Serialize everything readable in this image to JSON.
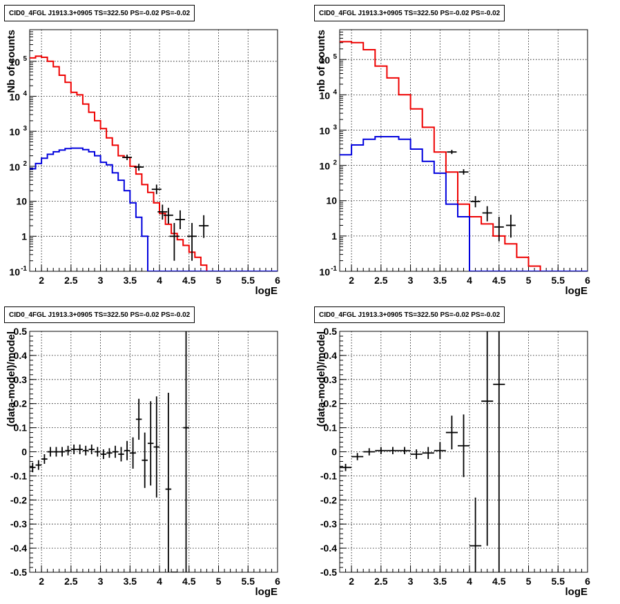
{
  "chart_data": [
    {
      "type": "histogram",
      "title": "CID0_4FGL J1913.3+0905 TS=322.50 PS=-0.02 PS=-0.02",
      "xlabel": "logE",
      "ylabel": "Nb of counts",
      "xlim": [
        1.8,
        6
      ],
      "ylim": [
        0.1,
        800000
      ],
      "log_y": true,
      "grid": true,
      "x_ticks": [
        "2",
        "2.5",
        "3",
        "3.5",
        "4",
        "4.5",
        "5",
        "5.5",
        "6"
      ],
      "y_ticks": [
        "10^-1",
        "1",
        "10",
        "10^2",
        "10^3",
        "10^4",
        "10^5"
      ],
      "bin_edges": [
        1.8,
        1.9,
        2.0,
        2.1,
        2.2,
        2.3,
        2.4,
        2.5,
        2.6,
        2.7,
        2.8,
        2.9,
        3.0,
        3.1,
        3.2,
        3.3,
        3.4,
        3.5,
        3.6,
        3.7,
        3.8,
        3.9,
        4.0,
        4.1,
        4.2,
        4.3,
        4.4,
        4.5,
        4.6,
        4.7,
        4.8,
        4.9,
        5.0,
        5.1,
        5.2,
        5.3,
        5.4,
        5.5,
        5.6,
        5.7,
        5.8,
        5.9,
        6.0
      ],
      "series": [
        {
          "color": "#ee0000",
          "values": [
            125000,
            140000,
            130000,
            100000,
            70000,
            40000,
            25000,
            13000,
            11000,
            6000,
            3500,
            2000,
            1200,
            650,
            400,
            200,
            180,
            100,
            60,
            30,
            18,
            9,
            4.5,
            2.2,
            1.2,
            0.8,
            0.55,
            0.35,
            0.25,
            0.15,
            0.1,
            0.1,
            0.1,
            0.1,
            0.1,
            0.1,
            0.1,
            0.1,
            0.1,
            0.1,
            0.1,
            0.1
          ]
        },
        {
          "color": "#0000dd",
          "values": [
            85,
            120,
            170,
            220,
            260,
            290,
            320,
            330,
            330,
            300,
            260,
            200,
            130,
            110,
            65,
            40,
            20,
            9,
            3.5,
            1,
            0.1,
            0.1,
            0.1,
            0.1,
            0.1,
            0.1,
            0.1,
            0.1,
            0.1,
            0.1,
            0.1,
            0.1,
            0.1,
            0.1,
            0.1,
            0.1,
            0.1,
            0.1,
            0.1,
            0.1,
            0.1,
            0.1
          ]
        }
      ],
      "data_points": [
        {
          "x": 3.45,
          "y": 180,
          "ylo": 150,
          "yhi": 215
        },
        {
          "x": 3.65,
          "y": 95,
          "ylo": 75,
          "yhi": 118
        },
        {
          "x": 3.95,
          "y": 22,
          "ylo": 16,
          "yhi": 30
        },
        {
          "x": 4.05,
          "y": 5,
          "ylo": 3,
          "yhi": 8
        },
        {
          "x": 4.15,
          "y": 4,
          "ylo": 2.3,
          "yhi": 6.5
        },
        {
          "x": 4.25,
          "y": 1,
          "ylo": 0.2,
          "yhi": 2.4
        },
        {
          "x": 4.35,
          "y": 3,
          "ylo": 1.6,
          "yhi": 5.5
        },
        {
          "x": 4.55,
          "y": 1,
          "ylo": 0.2,
          "yhi": 2.4
        },
        {
          "x": 4.75,
          "y": 2,
          "ylo": 0.9,
          "yhi": 4
        }
      ]
    },
    {
      "type": "histogram",
      "title": "CID0_4FGL J1913.3+0905 TS=322.50 PS=-0.02 PS=-0.02",
      "xlabel": "logE",
      "ylabel": "nb of counts",
      "xlim": [
        1.8,
        6
      ],
      "ylim": [
        0.1,
        700000
      ],
      "log_y": true,
      "grid": true,
      "x_ticks": [
        "2",
        "2.5",
        "3",
        "3.5",
        "4",
        "4.5",
        "5",
        "5.5",
        "6"
      ],
      "y_ticks": [
        "10^-1",
        "1",
        "10",
        "10^2",
        "10^3",
        "10^4",
        "10^5"
      ],
      "bin_edges": [
        1.8,
        2.0,
        2.2,
        2.4,
        2.6,
        2.8,
        3.0,
        3.2,
        3.4,
        3.6,
        3.8,
        4.0,
        4.2,
        4.4,
        4.6,
        4.8,
        5.0,
        5.2,
        5.4,
        5.6,
        5.8,
        6.0
      ],
      "series": [
        {
          "color": "#ee0000",
          "values": [
            320000,
            300000,
            190000,
            65000,
            30000,
            10000,
            4000,
            1200,
            240,
            65,
            8,
            3.5,
            2.2,
            1,
            0.6,
            0.25,
            0.14,
            0.1,
            0.1,
            0.1,
            0.1
          ]
        },
        {
          "color": "#0000dd",
          "values": [
            200,
            380,
            550,
            650,
            650,
            550,
            290,
            130,
            60,
            8,
            3.5,
            0.1,
            0.1,
            0.1,
            0.1,
            0.1,
            0.1,
            0.1,
            0.1,
            0.1,
            0.1
          ]
        }
      ],
      "data_points": [
        {
          "x": 3.7,
          "y": 240,
          "ylo": 210,
          "yhi": 275
        },
        {
          "x": 3.9,
          "y": 65,
          "ylo": 55,
          "yhi": 78
        },
        {
          "x": 4.1,
          "y": 9.5,
          "ylo": 6.5,
          "yhi": 13.5
        },
        {
          "x": 4.3,
          "y": 4.5,
          "ylo": 2.6,
          "yhi": 7
        },
        {
          "x": 4.5,
          "y": 1.8,
          "ylo": 0.7,
          "yhi": 3.5
        },
        {
          "x": 4.7,
          "y": 2,
          "ylo": 0.9,
          "yhi": 4
        }
      ]
    },
    {
      "type": "scatter",
      "title": "CID0_4FGL J1913.3+0905 TS=322.50 PS=-0.02 PS=-0.02",
      "xlabel": "logE",
      "ylabel": "(data-model)/model",
      "xlim": [
        1.8,
        6
      ],
      "ylim": [
        -0.5,
        0.5
      ],
      "grid": true,
      "x_ticks": [
        "2",
        "2.5",
        "3",
        "3.5",
        "4",
        "4.5",
        "5",
        "5.5",
        "6"
      ],
      "y_ticks": [
        "-0.5",
        "-0.4",
        "-0.3",
        "-0.2",
        "-0.1",
        "0",
        "0.1",
        "0.2",
        "0.3",
        "0.4",
        "0.5"
      ],
      "points": [
        {
          "x": 1.85,
          "xerr": 0.05,
          "y": -0.065,
          "yerr": 0.02
        },
        {
          "x": 1.95,
          "xerr": 0.05,
          "y": -0.055,
          "yerr": 0.02
        },
        {
          "x": 2.05,
          "xerr": 0.05,
          "y": -0.03,
          "yerr": 0.02
        },
        {
          "x": 2.15,
          "xerr": 0.05,
          "y": 0.0,
          "yerr": 0.02
        },
        {
          "x": 2.25,
          "xerr": 0.05,
          "y": 0.0,
          "yerr": 0.02
        },
        {
          "x": 2.35,
          "xerr": 0.05,
          "y": 0.0,
          "yerr": 0.02
        },
        {
          "x": 2.45,
          "xerr": 0.05,
          "y": 0.005,
          "yerr": 0.02
        },
        {
          "x": 2.55,
          "xerr": 0.05,
          "y": 0.01,
          "yerr": 0.02
        },
        {
          "x": 2.65,
          "xerr": 0.05,
          "y": 0.01,
          "yerr": 0.02
        },
        {
          "x": 2.75,
          "xerr": 0.05,
          "y": 0.005,
          "yerr": 0.02
        },
        {
          "x": 2.85,
          "xerr": 0.05,
          "y": 0.01,
          "yerr": 0.02
        },
        {
          "x": 2.95,
          "xerr": 0.05,
          "y": 0.0,
          "yerr": 0.02
        },
        {
          "x": 3.05,
          "xerr": 0.05,
          "y": -0.01,
          "yerr": 0.02
        },
        {
          "x": 3.15,
          "xerr": 0.05,
          "y": -0.005,
          "yerr": 0.02
        },
        {
          "x": 3.25,
          "xerr": 0.05,
          "y": 0.0,
          "yerr": 0.025
        },
        {
          "x": 3.35,
          "xerr": 0.05,
          "y": -0.01,
          "yerr": 0.03
        },
        {
          "x": 3.45,
          "xerr": 0.05,
          "y": 0.005,
          "yerr": 0.04
        },
        {
          "x": 3.55,
          "xerr": 0.05,
          "y": -0.005,
          "yerr": 0.065
        },
        {
          "x": 3.65,
          "xerr": 0.05,
          "y": 0.135,
          "yerr": 0.085
        },
        {
          "x": 3.75,
          "xerr": 0.05,
          "y": -0.035,
          "yerr": 0.115
        },
        {
          "x": 3.85,
          "xerr": 0.05,
          "y": 0.035,
          "yerr": 0.175
        },
        {
          "x": 3.95,
          "xerr": 0.05,
          "y": 0.02,
          "yerr": 0.21
        },
        {
          "x": 4.15,
          "xerr": 0.05,
          "y": -0.155,
          "yerr": 0.4
        },
        {
          "x": 4.25,
          "xerr": 0.05,
          "y": -0.5,
          "yerr": 0.0
        },
        {
          "x": 4.45,
          "xerr": 0.05,
          "y": 0.1,
          "yerr": 0.6
        }
      ]
    },
    {
      "type": "scatter",
      "title": "CID0_4FGL J1913.3+0905 TS=322.50 PS=-0.02 PS=-0.02",
      "xlabel": "logE",
      "ylabel": "(data-model)/model",
      "xlim": [
        1.8,
        6
      ],
      "ylim": [
        -0.5,
        0.5
      ],
      "grid": true,
      "x_ticks": [
        "2",
        "2.5",
        "3",
        "3.5",
        "4",
        "4.5",
        "5",
        "5.5",
        "6"
      ],
      "y_ticks": [
        "-0.5",
        "-0.4",
        "-0.3",
        "-0.2",
        "-0.1",
        "0",
        "0.1",
        "0.2",
        "0.3",
        "0.4",
        "0.5"
      ],
      "points": [
        {
          "x": 1.9,
          "xerr": 0.1,
          "y": -0.065,
          "yerr": 0.015
        },
        {
          "x": 2.1,
          "xerr": 0.1,
          "y": -0.02,
          "yerr": 0.015
        },
        {
          "x": 2.3,
          "xerr": 0.1,
          "y": 0.0,
          "yerr": 0.015
        },
        {
          "x": 2.5,
          "xerr": 0.1,
          "y": 0.005,
          "yerr": 0.015
        },
        {
          "x": 2.7,
          "xerr": 0.1,
          "y": 0.005,
          "yerr": 0.015
        },
        {
          "x": 2.9,
          "xerr": 0.1,
          "y": 0.005,
          "yerr": 0.015
        },
        {
          "x": 3.1,
          "xerr": 0.1,
          "y": -0.01,
          "yerr": 0.02
        },
        {
          "x": 3.3,
          "xerr": 0.1,
          "y": -0.005,
          "yerr": 0.025
        },
        {
          "x": 3.5,
          "xerr": 0.1,
          "y": 0.005,
          "yerr": 0.035
        },
        {
          "x": 3.7,
          "xerr": 0.1,
          "y": 0.08,
          "yerr": 0.07
        },
        {
          "x": 3.9,
          "xerr": 0.1,
          "y": 0.025,
          "yerr": 0.13
        },
        {
          "x": 4.1,
          "xerr": 0.1,
          "y": -0.39,
          "yerr": 0.2
        },
        {
          "x": 4.3,
          "xerr": 0.1,
          "y": 0.21,
          "yerr": 0.6
        },
        {
          "x": 4.5,
          "xerr": 0.1,
          "y": 0.28,
          "yerr": 0.8
        }
      ]
    }
  ]
}
